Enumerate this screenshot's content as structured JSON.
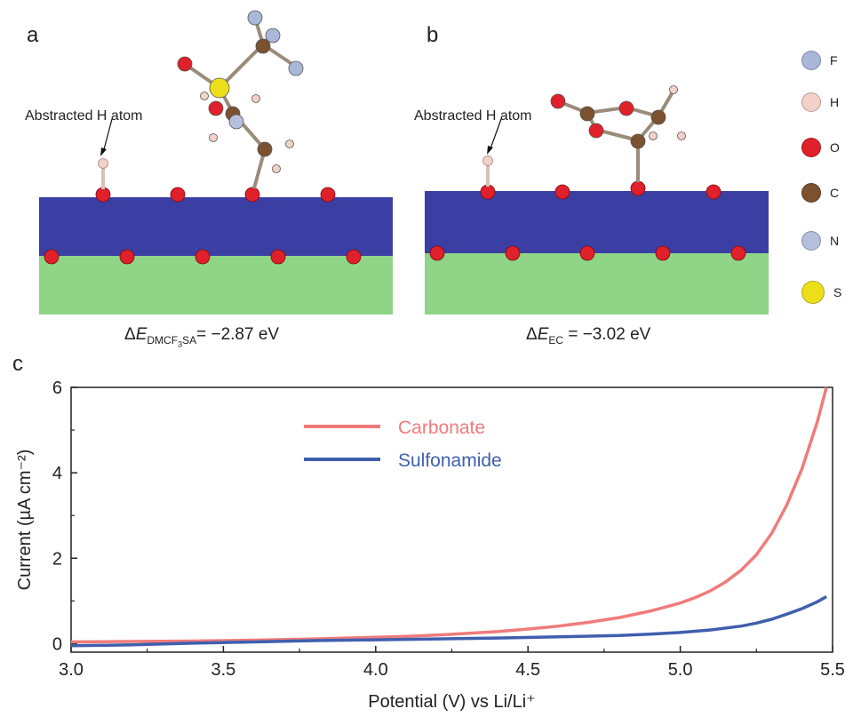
{
  "panels": {
    "a": {
      "label": "a",
      "annotation": "Abstracted H atom",
      "energy": {
        "delta": "Δ",
        "symbol": "E",
        "sub_pre": "DMCF",
        "sub_sub": "3",
        "sub_post": "SA",
        "value": "= −2.87 eV"
      }
    },
    "b": {
      "label": "b",
      "annotation": "Abstracted H atom",
      "energy": {
        "delta": "Δ",
        "symbol": "E",
        "sub": "EC",
        "value": " = −3.02 eV"
      }
    },
    "c": {
      "label": "c"
    }
  },
  "atom_legend": [
    {
      "symbol": "F",
      "color": "#a9b7d8"
    },
    {
      "symbol": "H",
      "color": "#f3d1c8"
    },
    {
      "symbol": "O",
      "color": "#e0202a"
    },
    {
      "symbol": "C",
      "color": "#7b5130"
    },
    {
      "symbol": "N",
      "color": "#b4bfdc"
    },
    {
      "symbol": "S",
      "color": "#ecdf1a"
    }
  ],
  "chart_data": {
    "type": "line",
    "xlabel": "Potential (V) vs Li/Li⁺",
    "ylabel": "Current (µA cm⁻²)",
    "xlim": [
      3.0,
      5.5
    ],
    "ylim": [
      -0.2,
      6
    ],
    "xticks": [
      "3.0",
      "3.5",
      "4.0",
      "4.5",
      "5.0",
      "5.5"
    ],
    "yticks": [
      "0",
      "2",
      "4",
      "6"
    ],
    "legend_position": "top-center",
    "series": [
      {
        "name": "Carbonate",
        "color": "#f07b7b",
        "x": [
          3.0,
          3.2,
          3.4,
          3.6,
          3.8,
          4.0,
          4.1,
          4.2,
          4.3,
          4.4,
          4.5,
          4.6,
          4.7,
          4.8,
          4.9,
          5.0,
          5.05,
          5.1,
          5.15,
          5.2,
          5.25,
          5.3,
          5.35,
          5.4,
          5.45,
          5.48
        ],
        "y": [
          0.04,
          0.05,
          0.06,
          0.08,
          0.11,
          0.15,
          0.17,
          0.2,
          0.24,
          0.28,
          0.34,
          0.41,
          0.5,
          0.61,
          0.76,
          0.95,
          1.08,
          1.24,
          1.45,
          1.72,
          2.08,
          2.58,
          3.25,
          4.1,
          5.2,
          6.0
        ]
      },
      {
        "name": "Sulfonamide",
        "color": "#3f5fae",
        "x": [
          3.0,
          3.2,
          3.4,
          3.6,
          3.8,
          4.0,
          4.2,
          4.4,
          4.6,
          4.8,
          4.9,
          5.0,
          5.1,
          5.2,
          5.25,
          5.3,
          5.35,
          5.4,
          5.45,
          5.48
        ],
        "y": [
          -0.05,
          -0.03,
          0.01,
          0.04,
          0.07,
          0.09,
          0.11,
          0.13,
          0.16,
          0.19,
          0.22,
          0.26,
          0.32,
          0.41,
          0.48,
          0.57,
          0.69,
          0.82,
          0.98,
          1.1
        ]
      }
    ]
  }
}
